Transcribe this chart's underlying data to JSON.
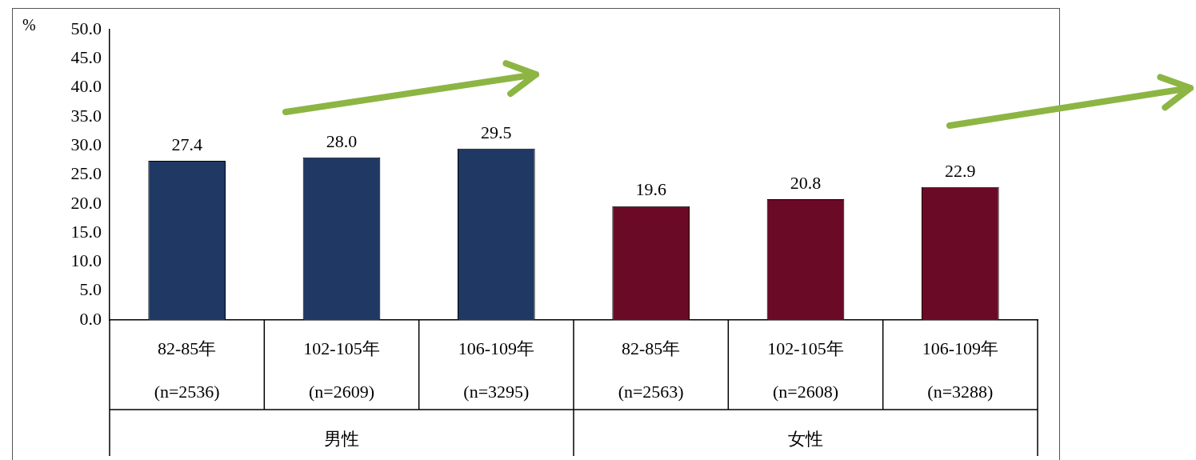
{
  "chart_data": {
    "type": "bar",
    "ylabel": "%",
    "categories": [
      "82-85年\n(n=2536)",
      "102-105年\n(n=2609)",
      "106-109年\n(n=3295)",
      "82-85年\n(n=2563)",
      "102-105年\n(n=2608)",
      "106-109年\n(n=3288)"
    ],
    "values": [
      27.4,
      28.0,
      29.5,
      19.6,
      20.8,
      22.9
    ],
    "colors": [
      "#1f3864",
      "#1f3864",
      "#1f3864",
      "#6b0a26",
      "#6b0a26",
      "#6b0a26"
    ],
    "ylim": [
      0,
      50
    ],
    "yticks": [
      {
        "value": 0,
        "label": "0.0"
      },
      {
        "value": 5,
        "label": "5.0"
      },
      {
        "value": 10,
        "label": "10.0"
      },
      {
        "value": 15,
        "label": "15.0"
      },
      {
        "value": 20,
        "label": "20.0"
      },
      {
        "value": 25,
        "label": "25.0"
      },
      {
        "value": 30,
        "label": "30.0"
      },
      {
        "value": 35,
        "label": "35.0"
      },
      {
        "value": 40,
        "label": "40.0"
      },
      {
        "value": 45,
        "label": "45.0"
      },
      {
        "value": 50,
        "label": "50.0"
      }
    ],
    "annotations": [
      "男性",
      "女性"
    ],
    "value_labels": [
      "27.4",
      "28.0",
      "29.5",
      "19.6",
      "20.8",
      "22.9"
    ],
    "grid": false,
    "legend": false
  }
}
